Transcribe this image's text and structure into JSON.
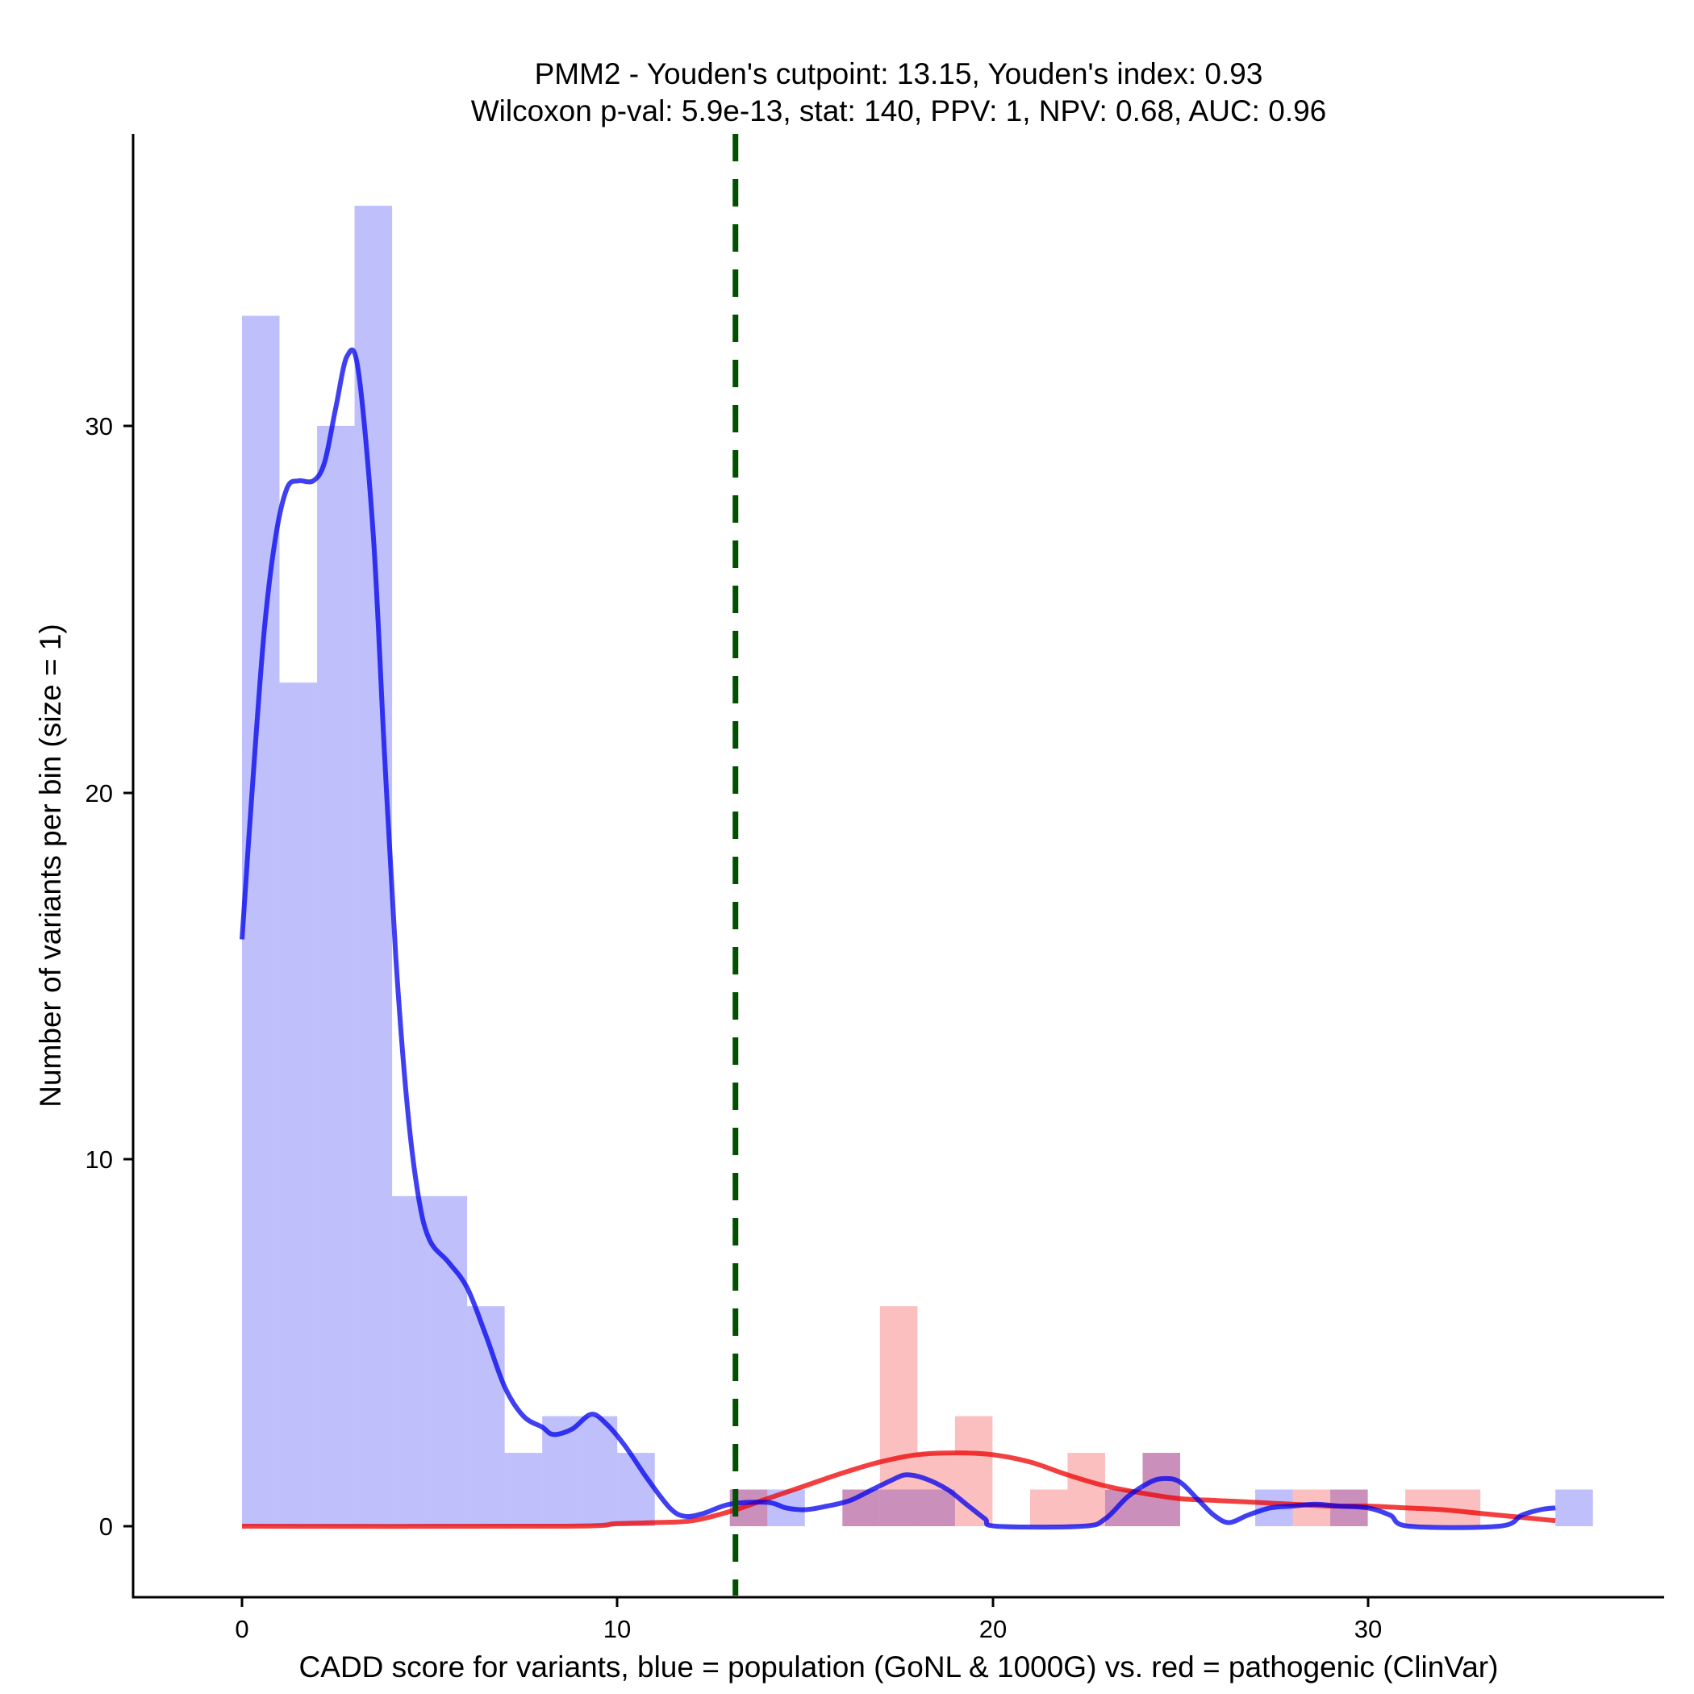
{
  "chart_data": {
    "type": "histogram",
    "title_line1": "PMM2 - Youden's cutpoint: 13.15, Youden's index: 0.93",
    "title_line2": "Wilcoxon p-val: 5.9e-13, stat: 140, PPV: 1, NPV: 0.68, AUC: 0.96",
    "xlabel": "CADD score for variants, blue = population (GoNL & 1000G) vs. red = pathogenic (ClinVar)",
    "ylabel": "Number of variants per bin (size = 1)",
    "xlim": [
      -2.9,
      37.8
    ],
    "ylim": [
      -1.8,
      37.8
    ],
    "x_ticks": [
      0,
      10,
      20,
      30
    ],
    "x_tick_labels": [
      "0",
      "10",
      "20",
      "30"
    ],
    "y_ticks": [
      0,
      10,
      20,
      30
    ],
    "y_tick_labels": [
      "0",
      "10",
      "20",
      "30"
    ],
    "bin_width": 1,
    "cutpoint": 13.15,
    "colors": {
      "population": "#0000ee",
      "pathogenic": "#ee0000",
      "cutpoint": "#005000"
    },
    "series": [
      {
        "name": "population",
        "bins": [
          {
            "x0": 0,
            "count": 33
          },
          {
            "x0": 1,
            "count": 23
          },
          {
            "x0": 2,
            "count": 30
          },
          {
            "x0": 3,
            "count": 36
          },
          {
            "x0": 4,
            "count": 9
          },
          {
            "x0": 5,
            "count": 9
          },
          {
            "x0": 6,
            "count": 6
          },
          {
            "x0": 7,
            "count": 2
          },
          {
            "x0": 8,
            "count": 3
          },
          {
            "x0": 9,
            "count": 3
          },
          {
            "x0": 10,
            "count": 2
          },
          {
            "x0": 13,
            "count": 1
          },
          {
            "x0": 14,
            "count": 1
          },
          {
            "x0": 16,
            "count": 1
          },
          {
            "x0": 17,
            "count": 1
          },
          {
            "x0": 18,
            "count": 1
          },
          {
            "x0": 23,
            "count": 1
          },
          {
            "x0": 24,
            "count": 2
          },
          {
            "x0": 27,
            "count": 1
          },
          {
            "x0": 29,
            "count": 1
          },
          {
            "x0": 35,
            "count": 1
          }
        ],
        "density": [
          [
            0,
            16
          ],
          [
            0.3,
            20.5
          ],
          [
            0.6,
            24.5
          ],
          [
            0.9,
            27
          ],
          [
            1.2,
            28.3
          ],
          [
            1.5,
            28.5
          ],
          [
            1.9,
            28.5
          ],
          [
            2.2,
            29
          ],
          [
            2.5,
            30.5
          ],
          [
            2.8,
            31.9
          ],
          [
            3.1,
            31.5
          ],
          [
            3.5,
            27
          ],
          [
            3.8,
            21
          ],
          [
            4.1,
            15.5
          ],
          [
            4.4,
            11.5
          ],
          [
            4.7,
            9
          ],
          [
            5.0,
            7.8
          ],
          [
            5.5,
            7.2
          ],
          [
            6.0,
            6.5
          ],
          [
            6.5,
            5.2
          ],
          [
            7.0,
            3.8
          ],
          [
            7.5,
            3.0
          ],
          [
            8.0,
            2.7
          ],
          [
            8.3,
            2.5
          ],
          [
            8.8,
            2.65
          ],
          [
            9.3,
            3.05
          ],
          [
            9.7,
            2.8
          ],
          [
            10.2,
            2.2
          ],
          [
            10.8,
            1.3
          ],
          [
            11.4,
            0.5
          ],
          [
            11.8,
            0.27
          ],
          [
            12.3,
            0.35
          ],
          [
            13.0,
            0.6
          ],
          [
            14.0,
            0.65
          ],
          [
            14.5,
            0.5
          ],
          [
            15.0,
            0.45
          ],
          [
            15.6,
            0.55
          ],
          [
            16.2,
            0.7
          ],
          [
            16.8,
            1.0
          ],
          [
            17.3,
            1.25
          ],
          [
            17.7,
            1.4
          ],
          [
            18.2,
            1.3
          ],
          [
            18.8,
            1.0
          ],
          [
            19.3,
            0.6
          ],
          [
            19.8,
            0.2
          ],
          [
            20.1,
            0.0
          ],
          [
            22.4,
            0.0
          ],
          [
            23.0,
            0.2
          ],
          [
            23.6,
            0.8
          ],
          [
            24.2,
            1.2
          ],
          [
            24.6,
            1.3
          ],
          [
            25.0,
            1.2
          ],
          [
            25.5,
            0.7
          ],
          [
            25.9,
            0.3
          ],
          [
            26.3,
            0.1
          ],
          [
            26.8,
            0.3
          ],
          [
            27.4,
            0.5
          ],
          [
            28.0,
            0.55
          ],
          [
            28.6,
            0.6
          ],
          [
            29.2,
            0.55
          ],
          [
            30.0,
            0.5
          ],
          [
            30.6,
            0.3
          ],
          [
            31.1,
            0.0
          ],
          [
            33.5,
            0.0
          ],
          [
            34.1,
            0.3
          ],
          [
            34.6,
            0.45
          ],
          [
            35.0,
            0.5
          ]
        ]
      },
      {
        "name": "pathogenic",
        "bins": [
          {
            "x0": 13,
            "count": 1
          },
          {
            "x0": 16,
            "count": 1
          },
          {
            "x0": 17,
            "count": 6
          },
          {
            "x0": 18,
            "count": 2
          },
          {
            "x0": 19,
            "count": 3
          },
          {
            "x0": 21,
            "count": 1
          },
          {
            "x0": 22,
            "count": 2
          },
          {
            "x0": 23,
            "count": 1
          },
          {
            "x0": 24,
            "count": 2
          },
          {
            "x0": 28,
            "count": 1
          },
          {
            "x0": 29,
            "count": 1
          },
          {
            "x0": 31,
            "count": 1
          },
          {
            "x0": 32,
            "count": 1
          }
        ],
        "density": [
          [
            0,
            0
          ],
          [
            8.5,
            0
          ],
          [
            10.0,
            0.07
          ],
          [
            11.0,
            0.1
          ],
          [
            12.0,
            0.15
          ],
          [
            13.0,
            0.4
          ],
          [
            14.0,
            0.75
          ],
          [
            15.0,
            1.1
          ],
          [
            16.0,
            1.45
          ],
          [
            17.0,
            1.75
          ],
          [
            18.0,
            1.95
          ],
          [
            19.0,
            2.0
          ],
          [
            20.0,
            1.95
          ],
          [
            21.0,
            1.75
          ],
          [
            22.0,
            1.4
          ],
          [
            23.0,
            1.1
          ],
          [
            24.0,
            0.9
          ],
          [
            25.0,
            0.75
          ],
          [
            26.0,
            0.7
          ],
          [
            27.0,
            0.65
          ],
          [
            28.0,
            0.6
          ],
          [
            29.0,
            0.55
          ],
          [
            30.0,
            0.55
          ],
          [
            31.0,
            0.5
          ],
          [
            32.0,
            0.45
          ],
          [
            33.0,
            0.35
          ],
          [
            34.0,
            0.25
          ],
          [
            35.0,
            0.15
          ]
        ]
      }
    ]
  }
}
